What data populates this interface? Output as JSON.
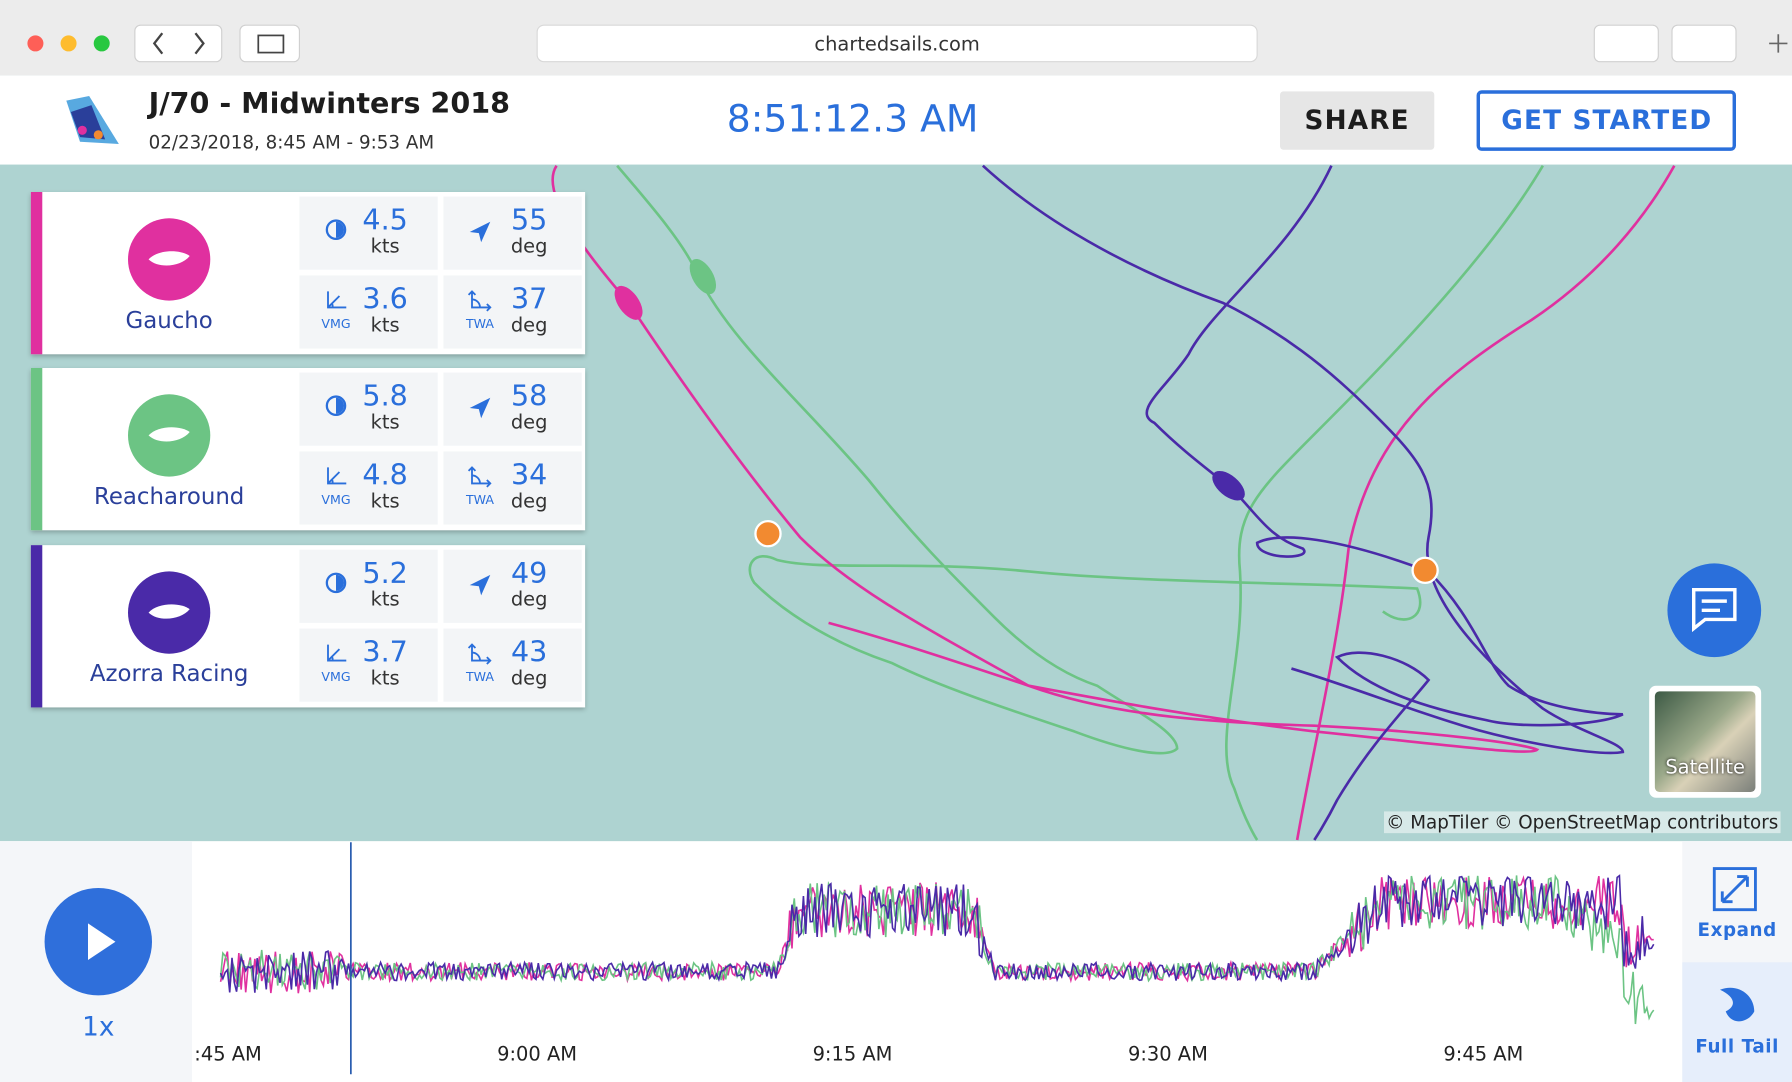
{
  "browser": {
    "url": "chartedsails.com"
  },
  "header": {
    "title": "J/70 - Midwinters 2018",
    "date_range": "02/23/2018, 8:45 AM - 9:53 AM",
    "clock": "8:51:12.3 AM",
    "share": "SHARE",
    "get_started": "GET STARTED"
  },
  "units": {
    "speed": "kts",
    "angle": "deg"
  },
  "stat_labels": {
    "vmg": "VMG",
    "twa": "TWA"
  },
  "boats": [
    {
      "name": "Gaucho",
      "color": "#e0309f",
      "speed": 4.5,
      "heading": 55,
      "vmg": 3.6,
      "twa": 37
    },
    {
      "name": "Reacharound",
      "color": "#6cc484",
      "speed": 5.8,
      "heading": 58,
      "vmg": 4.8,
      "twa": 34
    },
    {
      "name": "Azorra Racing",
      "color": "#4a2aa8",
      "speed": 5.2,
      "heading": 49,
      "vmg": 3.7,
      "twa": 43
    }
  ],
  "map": {
    "attribution": "© MapTiler © OpenStreetMap contributors",
    "satellite": "Satellite"
  },
  "playback": {
    "speed": "1x",
    "expand": "Expand",
    "full_tail": "Full Tail",
    "time_labels": [
      ":45 AM",
      "9:00 AM",
      "9:15 AM",
      "9:30 AM",
      "9:45 AM"
    ]
  }
}
